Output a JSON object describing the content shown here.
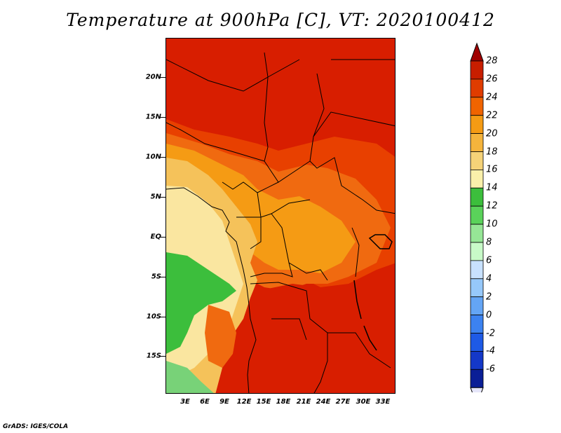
{
  "title": "Temperature at 900hPa [C], VT: 2020100412",
  "footer": "GrADS: IGES/COLA",
  "lat_labels": [
    "20N",
    "15N",
    "10N",
    "5N",
    "EQ",
    "5S",
    "10S",
    "15S"
  ],
  "lon_labels": [
    "3E",
    "6E",
    "9E",
    "12E",
    "15E",
    "18E",
    "21E",
    "24E",
    "27E",
    "30E",
    "33E"
  ],
  "colorbar": {
    "labels": [
      "28",
      "26",
      "24",
      "22",
      "20",
      "18",
      "16",
      "14",
      "12",
      "10",
      "8",
      "6",
      "4",
      "2",
      "0",
      "-2",
      "-4",
      "-6"
    ],
    "colors": [
      "#a00000",
      "#c81e00",
      "#e03c00",
      "#f06400",
      "#f59b14",
      "#f5b43c",
      "#f5d278",
      "#faf0aa",
      "#3cbe3c",
      "#5ad25a",
      "#96e696",
      "#c8fac8",
      "#c8e1ff",
      "#96c8fa",
      "#64a5f5",
      "#3c82f0",
      "#1e5ae6",
      "#1438c8",
      "#0a1e96",
      "#000064"
    ]
  },
  "map_colors": {
    "hot": "#d81e00",
    "warm": "#e84000",
    "orange": "#f06a10",
    "amber": "#f59b14",
    "light": "#f5c25a",
    "pale": "#fae6a0",
    "green": "#3cbe3c",
    "lightgreen": "#78d278"
  }
}
